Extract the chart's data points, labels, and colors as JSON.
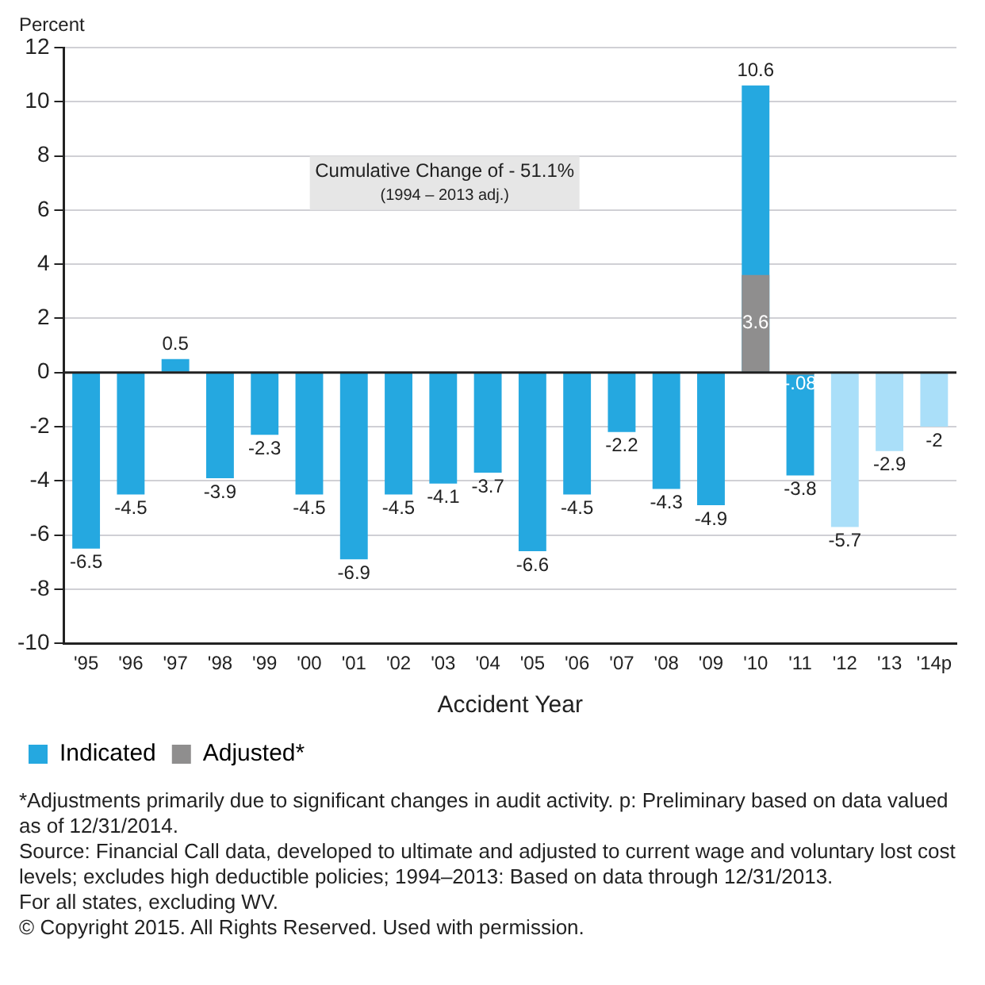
{
  "chart_data": {
    "type": "bar",
    "ylabel": "Percent",
    "xlabel": "Accident Year",
    "categories": [
      "'95",
      "'96",
      "'97",
      "'98",
      "'99",
      "'00",
      "'01",
      "'02",
      "'03",
      "'04",
      "'05",
      "'06",
      "'07",
      "'08",
      "'09",
      "'10",
      "'11",
      "'12",
      "'13",
      "'14p"
    ],
    "series": [
      {
        "name": "Indicated",
        "color": "#25a8e0",
        "colors": [
          "#25a8e0",
          "#25a8e0",
          "#25a8e0",
          "#25a8e0",
          "#25a8e0",
          "#25a8e0",
          "#25a8e0",
          "#25a8e0",
          "#25a8e0",
          "#25a8e0",
          "#25a8e0",
          "#25a8e0",
          "#25a8e0",
          "#25a8e0",
          "#25a8e0",
          "#25a8e0",
          "#25a8e0",
          "#aadff9",
          "#aadff9",
          "#aadff9"
        ],
        "values": [
          -6.5,
          -4.5,
          0.5,
          -3.9,
          -2.3,
          -4.5,
          -6.9,
          -4.5,
          -4.1,
          -3.7,
          -6.6,
          -4.5,
          -2.2,
          -4.3,
          -4.9,
          10.6,
          -3.8,
          -5.7,
          -2.9,
          -2
        ],
        "value_labels": [
          "-6.5",
          "-4.5",
          "0.5",
          "-3.9",
          "-2.3",
          "-4.5",
          "-6.9",
          "-4.5",
          "-4.1",
          "-3.7",
          "-6.6",
          "-4.5",
          "-2.2",
          "-4.3",
          "-4.9",
          "10.6",
          "-3.8",
          "-5.7",
          "-2.9",
          "-2"
        ]
      },
      {
        "name": "Adjusted*",
        "color": "#8f8e8e",
        "values": [
          null,
          null,
          null,
          null,
          null,
          null,
          null,
          null,
          null,
          null,
          null,
          null,
          null,
          null,
          null,
          3.6,
          -0.08,
          null,
          null,
          null
        ],
        "value_labels": [
          null,
          null,
          null,
          null,
          null,
          null,
          null,
          null,
          null,
          null,
          null,
          null,
          null,
          null,
          null,
          "3.6",
          "-.08",
          null,
          null,
          null
        ]
      }
    ],
    "ylim": [
      -10,
      12
    ],
    "yticks": [
      -10,
      -8,
      -6,
      -4,
      -2,
      0,
      2,
      4,
      6,
      8,
      10,
      12
    ],
    "grid": "y",
    "legend": "bottom left",
    "annotations": [
      "Cumulative Change of - 51.1%",
      "(1994 – 2013 adj.)",
      "*Adjustments primarily due to significant changes in audit activity. p: Preliminary based on data valued as of 12/31/2014.",
      "Source: Financial Call data, developed to ultimate and adjusted to current wage and voluntary lost cost levels; excludes high deductible policies; 1994–2013: Based on data through 12/31/2013.",
      "For all states, excluding WV.",
      "© Copyright 2015. All Rights Reserved. Used with permission."
    ]
  }
}
